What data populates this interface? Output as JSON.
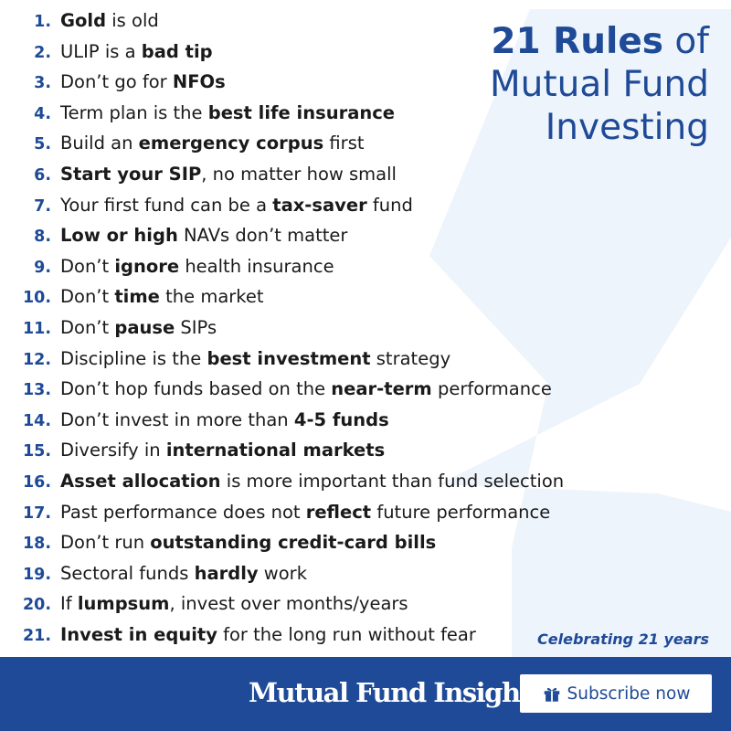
{
  "title": {
    "bold": "21 Rules",
    "rest_1": " of",
    "line2": "Mutual Fund",
    "line3": "Investing"
  },
  "rules": [
    [
      {
        "t": "Gold",
        "b": true
      },
      {
        "t": " is old"
      }
    ],
    [
      {
        "t": "ULIP is a "
      },
      {
        "t": "bad tip",
        "b": true
      }
    ],
    [
      {
        "t": "Don’t go for "
      },
      {
        "t": "NFOs",
        "b": true
      }
    ],
    [
      {
        "t": "Term plan is the "
      },
      {
        "t": "best life insurance",
        "b": true
      }
    ],
    [
      {
        "t": "Build an "
      },
      {
        "t": "emergency corpus",
        "b": true
      },
      {
        "t": " first"
      }
    ],
    [
      {
        "t": "Start your SIP",
        "b": true
      },
      {
        "t": ", no matter how small"
      }
    ],
    [
      {
        "t": "Your first fund can be a "
      },
      {
        "t": "tax-saver",
        "b": true
      },
      {
        "t": " fund"
      }
    ],
    [
      {
        "t": "Low or high",
        "b": true
      },
      {
        "t": " NAVs don’t matter"
      }
    ],
    [
      {
        "t": "Don’t "
      },
      {
        "t": "ignore",
        "b": true
      },
      {
        "t": " health insurance"
      }
    ],
    [
      {
        "t": "Don’t "
      },
      {
        "t": "time",
        "b": true
      },
      {
        "t": " the market"
      }
    ],
    [
      {
        "t": "Don’t "
      },
      {
        "t": "pause",
        "b": true
      },
      {
        "t": " SIPs"
      }
    ],
    [
      {
        "t": "Discipline is the "
      },
      {
        "t": "best investment",
        "b": true
      },
      {
        "t": " strategy"
      }
    ],
    [
      {
        "t": "Don’t hop funds based on the "
      },
      {
        "t": "near-term",
        "b": true
      },
      {
        "t": " performance"
      }
    ],
    [
      {
        "t": "Don’t invest in more than "
      },
      {
        "t": "4-5 funds",
        "b": true
      }
    ],
    [
      {
        "t": "Diversify in "
      },
      {
        "t": "international markets",
        "b": true
      }
    ],
    [
      {
        "t": "Asset allocation",
        "b": true
      },
      {
        "t": " is more important than fund selection"
      }
    ],
    [
      {
        "t": "Past performance does not "
      },
      {
        "t": "reflect",
        "b": true
      },
      {
        "t": " future performance"
      }
    ],
    [
      {
        "t": "Don’t run "
      },
      {
        "t": "outstanding credit-card bills",
        "b": true
      }
    ],
    [
      {
        "t": "Sectoral funds "
      },
      {
        "t": "hardly",
        "b": true
      },
      {
        "t": " work"
      }
    ],
    [
      {
        "t": "If "
      },
      {
        "t": "lumpsum",
        "b": true
      },
      {
        "t": ", invest over months/years"
      }
    ],
    [
      {
        "t": "Invest in equity",
        "b": true
      },
      {
        "t": " for the long run without fear"
      }
    ]
  ],
  "tagline": "Celebrating 21 years",
  "footer": {
    "brand": "Mutual Fund Insight",
    "subscribe_label": "Subscribe now",
    "subscribe_icon": "gift-icon"
  },
  "colors": {
    "accent": "#1f4a97",
    "text": "#1a1a1a",
    "background_shape": "#eef4fb"
  }
}
